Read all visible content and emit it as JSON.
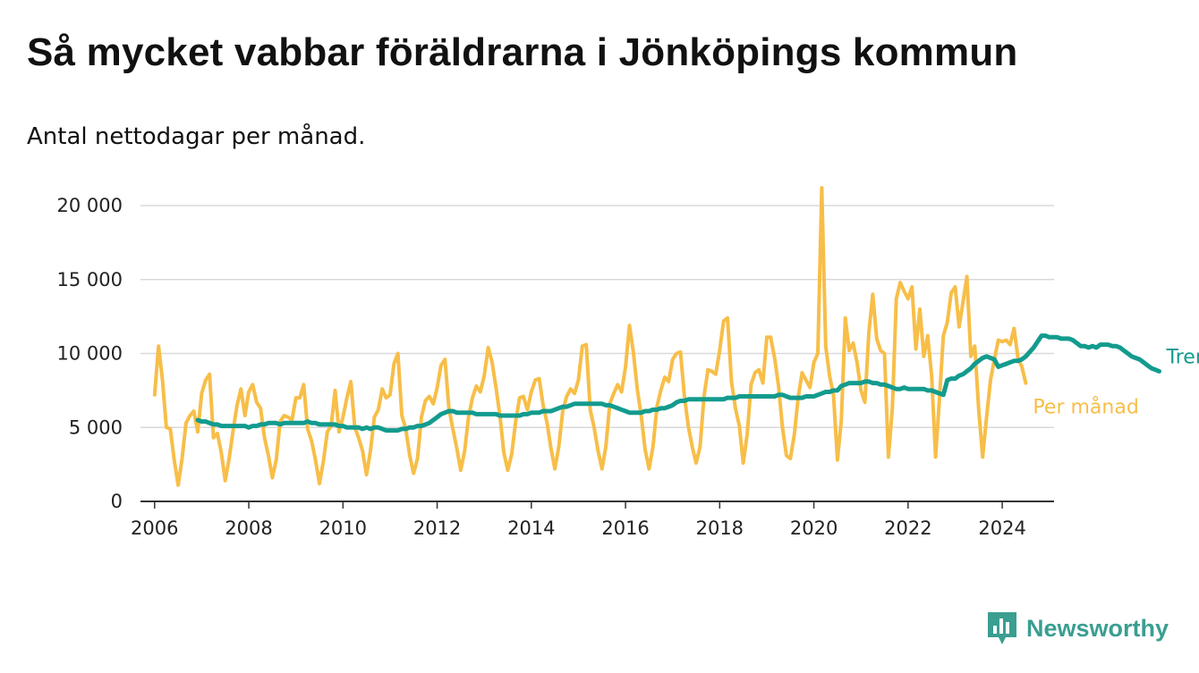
{
  "colors": {
    "trend": "#139b8e",
    "monthly": "#f7be48",
    "grid": "#d9d9d9",
    "axis": "#333333",
    "brand": "#3a9e91"
  },
  "brand": {
    "name": "Newsworthy",
    "icon": "newsworthy-logo-icon"
  },
  "chart_data": {
    "type": "line",
    "title": "Så mycket vabbar föräldrarna i Jönköpings kommun",
    "subtitle": "Antal nettodagar per månad.",
    "xlabel": "",
    "ylabel": "",
    "xlim": [
      2005.7,
      2025.1
    ],
    "ylim": [
      0,
      20000
    ],
    "x_ticks": [
      2006,
      2008,
      2010,
      2012,
      2014,
      2016,
      2018,
      2020,
      2022,
      2024
    ],
    "y_ticks": [
      0,
      5000,
      10000,
      15000,
      20000
    ],
    "x_tick_labels": [
      "2006",
      "2008",
      "2010",
      "2012",
      "2014",
      "2016",
      "2018",
      "2020",
      "2022",
      "2024"
    ],
    "y_tick_labels": [
      "0",
      "5 000",
      "10 000",
      "15 000",
      "20 000"
    ],
    "grid": true,
    "legend": "direct labels at line ends",
    "series": [
      {
        "name": "Per månad",
        "color": "#f7be48",
        "start": "2006-01",
        "values": [
          7200,
          10500,
          8200,
          5000,
          4900,
          2800,
          1100,
          2900,
          5300,
          5800,
          6100,
          4700,
          7300,
          8200,
          8600,
          4300,
          4600,
          3300,
          1400,
          2900,
          4800,
          6500,
          7600,
          5800,
          7400,
          7900,
          6700,
          6300,
          4300,
          3100,
          1600,
          2800,
          5400,
          5800,
          5700,
          5500,
          7000,
          7000,
          7900,
          4900,
          4100,
          2800,
          1200,
          2700,
          4700,
          5100,
          7500,
          4700,
          5700,
          7000,
          8100,
          5000,
          4300,
          3400,
          1800,
          3400,
          5700,
          6200,
          7600,
          7000,
          7200,
          9300,
          10000,
          5800,
          4900,
          3100,
          1900,
          2900,
          5700,
          6800,
          7100,
          6600,
          7700,
          9200,
          9600,
          6300,
          4900,
          3600,
          2100,
          3400,
          5700,
          7000,
          7800,
          7400,
          8500,
          10400,
          9400,
          7700,
          5800,
          3300,
          2100,
          3200,
          5400,
          7000,
          7100,
          6200,
          7400,
          8200,
          8300,
          6500,
          5300,
          3600,
          2200,
          3700,
          6100,
          7100,
          7600,
          7300,
          8200,
          10500,
          10600,
          6200,
          5000,
          3400,
          2200,
          3700,
          6600,
          7300,
          7900,
          7400,
          9100,
          11900,
          10100,
          7600,
          5800,
          3500,
          2200,
          3700,
          6400,
          7500,
          8400,
          8100,
          9600,
          10000,
          10100,
          7100,
          5100,
          3700,
          2600,
          3700,
          7100,
          8900,
          8800,
          8600,
          10200,
          12200,
          12400,
          8100,
          6300,
          5100,
          2600,
          4500,
          7900,
          8700,
          8900,
          8000,
          11100,
          11100,
          9700,
          7800,
          5000,
          3100,
          2900,
          4500,
          7000,
          8700,
          8200,
          7700,
          9400,
          10000,
          21200,
          10500,
          8500,
          7200,
          2800,
          5500,
          12400,
          10200,
          10700,
          9400,
          7500,
          6700,
          11400,
          14000,
          11000,
          10200,
          10000,
          3000,
          6300,
          13700,
          14800,
          14200,
          13700,
          14500,
          10300,
          13000,
          9800,
          11200,
          8500,
          3000,
          6900,
          11200,
          12100,
          14100,
          14500,
          11800,
          13500,
          15200,
          9800,
          10500,
          6200,
          3000,
          5700,
          8200,
          9600,
          10900,
          10800,
          10900,
          10600,
          11700,
          9700,
          9100,
          8000
        ]
      },
      {
        "name": "Trend",
        "color": "#139b8e",
        "start": "2006-12",
        "values": [
          5500,
          5400,
          5400,
          5300,
          5200,
          5200,
          5100,
          5100,
          5100,
          5100,
          5100,
          5100,
          5100,
          5000,
          5100,
          5100,
          5200,
          5200,
          5300,
          5300,
          5300,
          5200,
          5300,
          5300,
          5300,
          5300,
          5300,
          5300,
          5400,
          5300,
          5300,
          5200,
          5200,
          5200,
          5200,
          5200,
          5100,
          5100,
          5000,
          5000,
          5000,
          5000,
          4900,
          5000,
          4900,
          5000,
          5000,
          4900,
          4800,
          4800,
          4800,
          4800,
          4900,
          4900,
          5000,
          5000,
          5100,
          5100,
          5200,
          5300,
          5500,
          5700,
          5900,
          6000,
          6100,
          6100,
          6000,
          6000,
          6000,
          6000,
          6000,
          5900,
          5900,
          5900,
          5900,
          5900,
          5900,
          5800,
          5800,
          5800,
          5800,
          5800,
          5800,
          5900,
          5900,
          6000,
          6000,
          6000,
          6100,
          6100,
          6100,
          6200,
          6300,
          6400,
          6400,
          6500,
          6600,
          6600,
          6600,
          6600,
          6600,
          6600,
          6600,
          6600,
          6500,
          6500,
          6400,
          6300,
          6200,
          6100,
          6000,
          6000,
          6000,
          6000,
          6100,
          6100,
          6200,
          6200,
          6300,
          6300,
          6400,
          6500,
          6700,
          6800,
          6800,
          6900,
          6900,
          6900,
          6900,
          6900,
          6900,
          6900,
          6900,
          6900,
          6900,
          7000,
          7000,
          7000,
          7100,
          7100,
          7100,
          7100,
          7100,
          7100,
          7100,
          7100,
          7100,
          7100,
          7200,
          7200,
          7100,
          7000,
          7000,
          7000,
          7000,
          7100,
          7100,
          7100,
          7200,
          7300,
          7400,
          7400,
          7500,
          7500,
          7800,
          7900,
          8000,
          8000,
          8000,
          8000,
          8100,
          8100,
          8000,
          8000,
          7900,
          7900,
          7800,
          7700,
          7600,
          7600,
          7700,
          7600,
          7600,
          7600,
          7600,
          7600,
          7500,
          7500,
          7400,
          7300,
          7200,
          8200,
          8300,
          8300,
          8500,
          8600,
          8800,
          9000,
          9300,
          9500,
          9700,
          9800,
          9700,
          9600,
          9100,
          9200,
          9300,
          9400,
          9500,
          9500,
          9600,
          9800,
          10100,
          10400,
          10800,
          11200,
          11200,
          11100,
          11100,
          11100,
          11000,
          11000,
          11000,
          10900,
          10700,
          10500,
          10500,
          10400,
          10500,
          10400,
          10600,
          10600,
          10600,
          10500,
          10500,
          10400,
          10200,
          10000,
          9800,
          9700,
          9600,
          9400,
          9200,
          9000,
          8900,
          8800
        ]
      }
    ]
  }
}
